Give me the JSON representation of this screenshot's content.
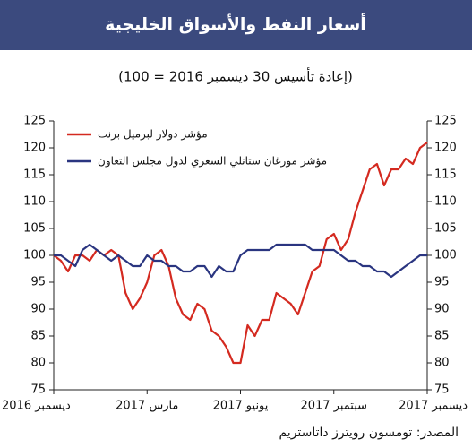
{
  "chart_data": {
    "type": "line",
    "title": "أسعار النفط والأسواق الخليجية",
    "subtitle": "(إعادة تأسيس 30 ديسمبر 2016 = 100)",
    "source": "المصدر: تومسون رويترز داتاستريم",
    "categories": [
      "ديسمبر 2016",
      null,
      null,
      null,
      null,
      null,
      null,
      null,
      null,
      null,
      null,
      null,
      null,
      "مارس 2017",
      null,
      null,
      null,
      null,
      null,
      null,
      null,
      null,
      null,
      null,
      null,
      null,
      "يونيو 2017",
      null,
      null,
      null,
      null,
      null,
      null,
      null,
      null,
      null,
      null,
      null,
      null,
      "سبتمبر 2017",
      null,
      null,
      null,
      null,
      null,
      null,
      null,
      null,
      null,
      null,
      null,
      null,
      "ديسمبر 2017"
    ],
    "series": [
      {
        "name": "مؤشر دولار لبرميل برنت",
        "color": "#d42a20",
        "values": [
          100,
          99,
          97,
          100,
          100,
          99,
          101,
          100,
          101,
          100,
          93,
          90,
          92,
          95,
          100,
          101,
          98,
          92,
          89,
          88,
          91,
          90,
          86,
          85,
          83,
          80,
          80,
          87,
          85,
          88,
          88,
          93,
          92,
          91,
          89,
          93,
          97,
          98,
          103,
          104,
          101,
          103,
          108,
          112,
          116,
          117,
          113,
          116,
          116,
          118,
          117,
          120,
          121
        ]
      },
      {
        "name": "مؤشر مورغان ستانلي السعري لدول مجلس التعاون",
        "color": "#2a3580",
        "values": [
          100,
          100,
          99,
          98,
          101,
          102,
          101,
          100,
          99,
          100,
          99,
          98,
          98,
          100,
          99,
          99,
          98,
          98,
          97,
          97,
          98,
          98,
          96,
          98,
          97,
          97,
          100,
          101,
          101,
          101,
          101,
          102,
          102,
          102,
          102,
          102,
          101,
          101,
          101,
          101,
          100,
          99,
          99,
          98,
          98,
          97,
          97,
          96,
          97,
          98,
          99,
          100,
          100
        ]
      }
    ],
    "ylim": [
      75,
      125
    ],
    "yticks": [
      75,
      80,
      85,
      90,
      95,
      100,
      105,
      110,
      115,
      120,
      125
    ],
    "y2lim": [
      75,
      125
    ],
    "y2ticks": [
      75,
      80,
      85,
      90,
      95,
      100,
      105,
      110,
      115,
      120,
      125
    ],
    "legend": "upper left",
    "grid": false
  }
}
